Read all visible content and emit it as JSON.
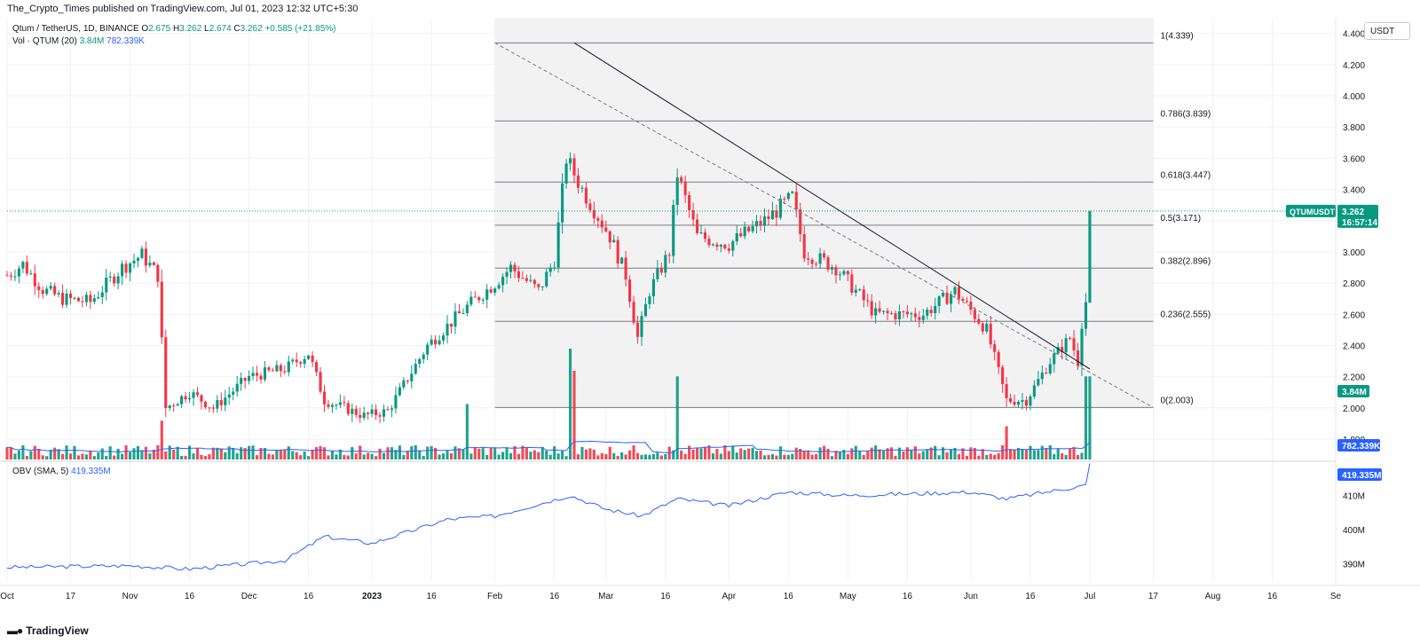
{
  "header": {
    "credit": "The_Crypto_Times published on TradingView.com, Jul 01, 2023 12:32 UTC+5:30",
    "symbol_line": "Qtum / TetherUS, 1D, BINANCE",
    "ohlc": [
      {
        "label": "O",
        "value": "2.675"
      },
      {
        "label": "H",
        "value": "3.262"
      },
      {
        "label": "L",
        "value": "2.674"
      },
      {
        "label": "C",
        "value": "3.262"
      }
    ],
    "change": "+0.585 (+21.85%)",
    "vol_label": "Vol · QTUM (20)",
    "vol_value": "3.84M",
    "vol_ma": "782.339K",
    "obv_label": "OBV (SMA, 5)",
    "obv_value": "419.335M",
    "currency": "USDT"
  },
  "footer": {
    "brand": "TradingView",
    "logo_icon": "tradingview-logo-icon"
  },
  "colors": {
    "up": "#089981",
    "down": "#f23645",
    "line": "#2962ff",
    "fib": "#787b86",
    "trend": "#131722"
  },
  "chart_data": [
    {
      "type": "candlestick",
      "title": "Qtum / TetherUS, 1D, BINANCE",
      "ylabel": "USDT",
      "y_ticks": [
        "1.800",
        "2.000",
        "2.200",
        "2.400",
        "2.600",
        "2.800",
        "3.000",
        "3.200",
        "3.400",
        "3.600",
        "3.800",
        "4.000",
        "4.200",
        "4.400"
      ],
      "ylim": [
        1.67,
        4.5
      ],
      "x_ticks": [
        "Oct",
        "17",
        "Nov",
        "16",
        "Dec",
        "16",
        "2023",
        "16",
        "Feb",
        "16",
        "Mar",
        "16",
        "Apr",
        "16",
        "May",
        "16",
        "Jun",
        "16",
        "Jul",
        "17",
        "Aug",
        "16",
        "Se"
      ],
      "x_tick_dates": [
        "2022-10-01",
        "2022-10-17",
        "2022-11-01",
        "2022-11-16",
        "2022-12-01",
        "2022-12-16",
        "2023-01-01",
        "2023-01-16",
        "2023-02-01",
        "2023-02-16",
        "2023-03-01",
        "2023-03-16",
        "2023-04-01",
        "2023-04-16",
        "2023-05-01",
        "2023-05-16",
        "2023-06-01",
        "2023-06-16",
        "2023-07-01",
        "2023-07-17",
        "2023-08-01",
        "2023-08-16",
        "2023-09-01"
      ],
      "last_price": {
        "symbol": "QTUMUSDT",
        "value": "3.262",
        "countdown": "16:57:14"
      },
      "price_anchors": [
        {
          "date": "2022-10-01",
          "close": 2.85
        },
        {
          "date": "2022-10-05",
          "close": 2.92
        },
        {
          "date": "2022-10-10",
          "close": 2.76
        },
        {
          "date": "2022-10-15",
          "close": 2.7
        },
        {
          "date": "2022-10-22",
          "close": 2.68
        },
        {
          "date": "2022-10-30",
          "close": 2.9
        },
        {
          "date": "2022-11-04",
          "close": 2.98
        },
        {
          "date": "2022-11-08",
          "close": 2.85
        },
        {
          "date": "2022-11-10",
          "close": 2.0
        },
        {
          "date": "2022-11-16",
          "close": 2.1
        },
        {
          "date": "2022-11-22",
          "close": 2.0
        },
        {
          "date": "2022-12-01",
          "close": 2.2
        },
        {
          "date": "2022-12-10",
          "close": 2.25
        },
        {
          "date": "2022-12-16",
          "close": 2.35
        },
        {
          "date": "2022-12-20",
          "close": 2.05
        },
        {
          "date": "2022-12-30",
          "close": 1.95
        },
        {
          "date": "2023-01-05",
          "close": 1.98
        },
        {
          "date": "2023-01-15",
          "close": 2.4
        },
        {
          "date": "2023-01-25",
          "close": 2.65
        },
        {
          "date": "2023-02-01",
          "close": 2.8
        },
        {
          "date": "2023-02-05",
          "close": 2.9
        },
        {
          "date": "2023-02-12",
          "close": 2.75
        },
        {
          "date": "2023-02-16",
          "close": 2.95
        },
        {
          "date": "2023-02-19",
          "close": 3.6
        },
        {
          "date": "2023-02-23",
          "close": 3.4
        },
        {
          "date": "2023-03-02",
          "close": 3.1
        },
        {
          "date": "2023-03-06",
          "close": 2.85
        },
        {
          "date": "2023-03-09",
          "close": 2.45
        },
        {
          "date": "2023-03-12",
          "close": 2.75
        },
        {
          "date": "2023-03-17",
          "close": 3.0
        },
        {
          "date": "2023-03-19",
          "close": 3.5
        },
        {
          "date": "2023-03-24",
          "close": 3.1
        },
        {
          "date": "2023-04-01",
          "close": 3.05
        },
        {
          "date": "2023-04-10",
          "close": 3.2
        },
        {
          "date": "2023-04-17",
          "close": 3.35
        },
        {
          "date": "2023-04-20",
          "close": 3.0
        },
        {
          "date": "2023-04-28",
          "close": 2.9
        },
        {
          "date": "2023-05-08",
          "close": 2.6
        },
        {
          "date": "2023-05-20",
          "close": 2.6
        },
        {
          "date": "2023-05-28",
          "close": 2.75
        },
        {
          "date": "2023-06-05",
          "close": 2.5
        },
        {
          "date": "2023-06-10",
          "close": 2.05
        },
        {
          "date": "2023-06-15",
          "close": 2.05
        },
        {
          "date": "2023-06-21",
          "close": 2.3
        },
        {
          "date": "2023-06-26",
          "close": 2.45
        },
        {
          "date": "2023-06-28",
          "close": 2.3
        },
        {
          "date": "2023-06-29",
          "close": 2.55
        },
        {
          "date": "2023-06-30",
          "close": 2.68
        },
        {
          "date": "2023-07-01",
          "close": 3.262
        }
      ],
      "fibonacci": [
        {
          "level": "1",
          "price": 4.339,
          "label": "1(4.339)"
        },
        {
          "level": "0.786",
          "price": 3.839,
          "label": "0.786(3.839)"
        },
        {
          "level": "0.618",
          "price": 3.447,
          "label": "0.618(3.447)"
        },
        {
          "level": "0.5",
          "price": 3.171,
          "label": "0.5(3.171)"
        },
        {
          "level": "0.382",
          "price": 2.896,
          "label": "0.382(2.896)"
        },
        {
          "level": "0.236",
          "price": 2.555,
          "label": "0.236(2.555)"
        },
        {
          "level": "0",
          "price": 2.003,
          "label": "0(2.003)"
        }
      ],
      "fib_range": {
        "start": "2023-02-01",
        "end": "2023-07-17"
      },
      "trendlines": [
        {
          "style": "solid",
          "from": {
            "date": "2023-02-21",
            "price": 4.339
          },
          "to": {
            "date": "2023-07-01",
            "price": 2.25
          }
        },
        {
          "style": "dashed",
          "from": {
            "date": "2023-02-01",
            "price": 4.339
          },
          "to": {
            "date": "2023-07-17",
            "price": 2.003
          }
        }
      ]
    },
    {
      "type": "bar",
      "title": "Vol · QTUM (20)",
      "current": "3.84M",
      "ma_current": "782.339K",
      "spikes": [
        {
          "date": "2022-11-09",
          "value": 0.35
        },
        {
          "date": "2023-01-25",
          "value": 0.5
        },
        {
          "date": "2023-02-20",
          "value": 1.0
        },
        {
          "date": "2023-02-21",
          "value": 0.8
        },
        {
          "date": "2023-03-19",
          "value": 0.75
        },
        {
          "date": "2023-06-10",
          "value": 0.3
        },
        {
          "date": "2023-06-30",
          "value": 0.75
        },
        {
          "date": "2023-07-01",
          "value": 0.75
        }
      ]
    },
    {
      "type": "line",
      "title": "OBV (SMA, 5)",
      "current": "419.335M",
      "y_ticks": [
        "390M",
        "400M",
        "410M"
      ],
      "ylim": [
        385,
        420
      ],
      "anchors": [
        {
          "date": "2022-10-01",
          "value": 389
        },
        {
          "date": "2022-11-01",
          "value": 389.5
        },
        {
          "date": "2022-11-16",
          "value": 388.5
        },
        {
          "date": "2022-12-10",
          "value": 391
        },
        {
          "date": "2022-12-20",
          "value": 398
        },
        {
          "date": "2023-01-01",
          "value": 396
        },
        {
          "date": "2023-01-20",
          "value": 403
        },
        {
          "date": "2023-02-01",
          "value": 404
        },
        {
          "date": "2023-02-20",
          "value": 410
        },
        {
          "date": "2023-03-01",
          "value": 406
        },
        {
          "date": "2023-03-10",
          "value": 404
        },
        {
          "date": "2023-03-19",
          "value": 409
        },
        {
          "date": "2023-04-01",
          "value": 407
        },
        {
          "date": "2023-04-16",
          "value": 411
        },
        {
          "date": "2023-05-01",
          "value": 410
        },
        {
          "date": "2023-06-01",
          "value": 411
        },
        {
          "date": "2023-06-10",
          "value": 409
        },
        {
          "date": "2023-06-25",
          "value": 412
        },
        {
          "date": "2023-06-30",
          "value": 413
        },
        {
          "date": "2023-07-01",
          "value": 419.3
        }
      ]
    }
  ]
}
